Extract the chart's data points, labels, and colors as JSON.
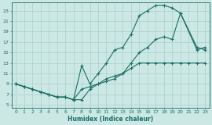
{
  "xlabel": "Humidex (Indice chaleur)",
  "bg_color": "#cce8e5",
  "grid_color": "#aacfcc",
  "line_color": "#1a6e65",
  "xlim": [
    -0.5,
    23.5
  ],
  "ylim": [
    4.5,
    24.5
  ],
  "xticks": [
    0,
    1,
    2,
    3,
    4,
    5,
    6,
    7,
    8,
    9,
    10,
    11,
    12,
    13,
    14,
    15,
    16,
    17,
    18,
    19,
    20,
    21,
    22,
    23
  ],
  "yticks": [
    5,
    7,
    9,
    11,
    13,
    15,
    17,
    19,
    21,
    23
  ],
  "line1_x": [
    0,
    1,
    2,
    3,
    4,
    5,
    6,
    7,
    8,
    9,
    10,
    11,
    12,
    13,
    14,
    15,
    16,
    17,
    18,
    19,
    20,
    21,
    22,
    23
  ],
  "line1_y": [
    9,
    8.5,
    8,
    7.5,
    7,
    6.5,
    6.5,
    6,
    6,
    8,
    9,
    10,
    10.5,
    11,
    12,
    13,
    13,
    13,
    13,
    13,
    13,
    13,
    13,
    13
  ],
  "line2_x": [
    0,
    1,
    2,
    3,
    4,
    5,
    6,
    7,
    8,
    9,
    10,
    11,
    12,
    13,
    14,
    15,
    16,
    17,
    18,
    19,
    20,
    22,
    23
  ],
  "line2_y": [
    9,
    8.5,
    8,
    7.5,
    7,
    6.5,
    6.5,
    6,
    12.5,
    9,
    11,
    13,
    15.5,
    16,
    18.5,
    22,
    23,
    24,
    24,
    23.5,
    22.5,
    16,
    15.5
  ],
  "line3_x": [
    0,
    1,
    2,
    3,
    4,
    5,
    6,
    7,
    8,
    9,
    10,
    11,
    12,
    13,
    14,
    15,
    16,
    17,
    18,
    19,
    20,
    22,
    23
  ],
  "line3_y": [
    9,
    8.5,
    8,
    7.5,
    7,
    6.5,
    6.5,
    6,
    8,
    8.5,
    9,
    9.5,
    10,
    11,
    13,
    15,
    16,
    17.5,
    18,
    17.5,
    22.5,
    15.5,
    16
  ]
}
